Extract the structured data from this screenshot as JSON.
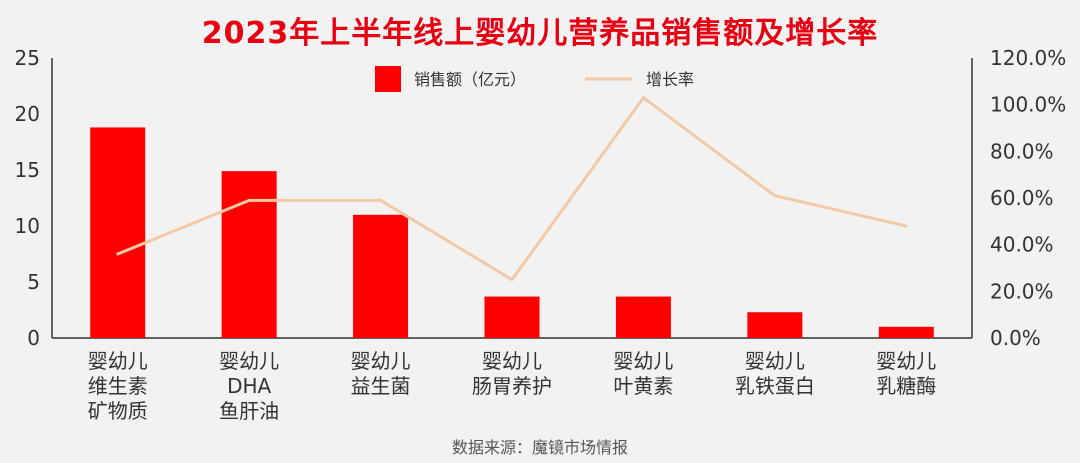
{
  "title": "2023年上半年线上婴幼儿营养品销售额及增长率",
  "source": "数据来源：魔镜市场情报",
  "colors": {
    "bar": "#ff0000",
    "line": "#f2c9a6",
    "axis": "#333333"
  },
  "chart_data": {
    "type": "bar",
    "title": "2023年上半年线上婴幼儿营养品销售额及增长率",
    "categories": [
      [
        "婴幼儿",
        "维生素",
        "矿物质"
      ],
      [
        "婴幼儿",
        "DHA",
        "鱼肝油"
      ],
      [
        "婴幼儿",
        "益生菌"
      ],
      [
        "婴幼儿",
        "肠胃养护"
      ],
      [
        "婴幼儿",
        "叶黄素"
      ],
      [
        "婴幼儿",
        "乳铁蛋白"
      ],
      [
        "婴幼儿",
        "乳糖酶"
      ]
    ],
    "series": [
      {
        "name": "销售额（亿元）",
        "type": "bar",
        "axis": "left",
        "values": [
          18.8,
          14.9,
          11.0,
          3.7,
          3.7,
          2.3,
          1.0
        ]
      },
      {
        "name": "增长率",
        "type": "line",
        "axis": "right",
        "values": [
          36,
          59,
          59,
          25,
          103,
          61,
          48
        ]
      }
    ],
    "left_axis": {
      "ylim": [
        0,
        25
      ],
      "ticks": [
        "0",
        "5",
        "10",
        "15",
        "20",
        "25"
      ]
    },
    "right_axis": {
      "ylim": [
        0,
        120
      ],
      "ticks": [
        "0.0%",
        "20.0%",
        "40.0%",
        "60.0%",
        "80.0%",
        "100.0%",
        "120.0%"
      ]
    },
    "legend": "top-center",
    "grid": false
  }
}
